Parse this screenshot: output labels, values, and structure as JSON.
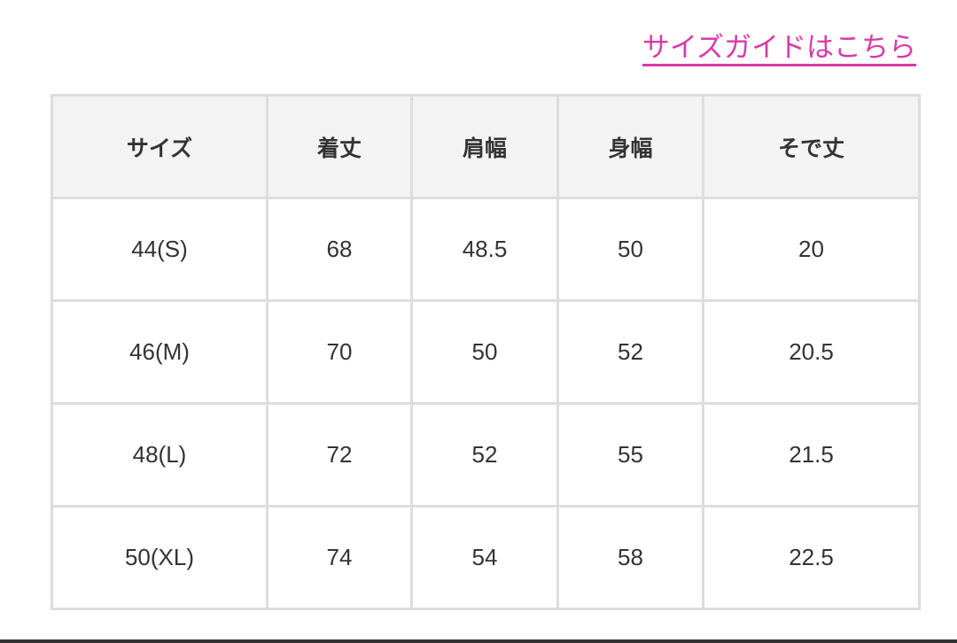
{
  "size_guide_link": "サイズガイドはこちら",
  "colors": {
    "link": "#d93aa8",
    "header_bg": "#f3f3f3",
    "border": "#dddddd"
  },
  "table": {
    "headers": [
      "サイズ",
      "着丈",
      "肩幅",
      "身幅",
      "そで丈"
    ],
    "rows": [
      [
        "44(S)",
        "68",
        "48.5",
        "50",
        "20"
      ],
      [
        "46(M)",
        "70",
        "50",
        "52",
        "20.5"
      ],
      [
        "48(L)",
        "72",
        "52",
        "55",
        "21.5"
      ],
      [
        "50(XL)",
        "74",
        "54",
        "58",
        "22.5"
      ]
    ]
  }
}
